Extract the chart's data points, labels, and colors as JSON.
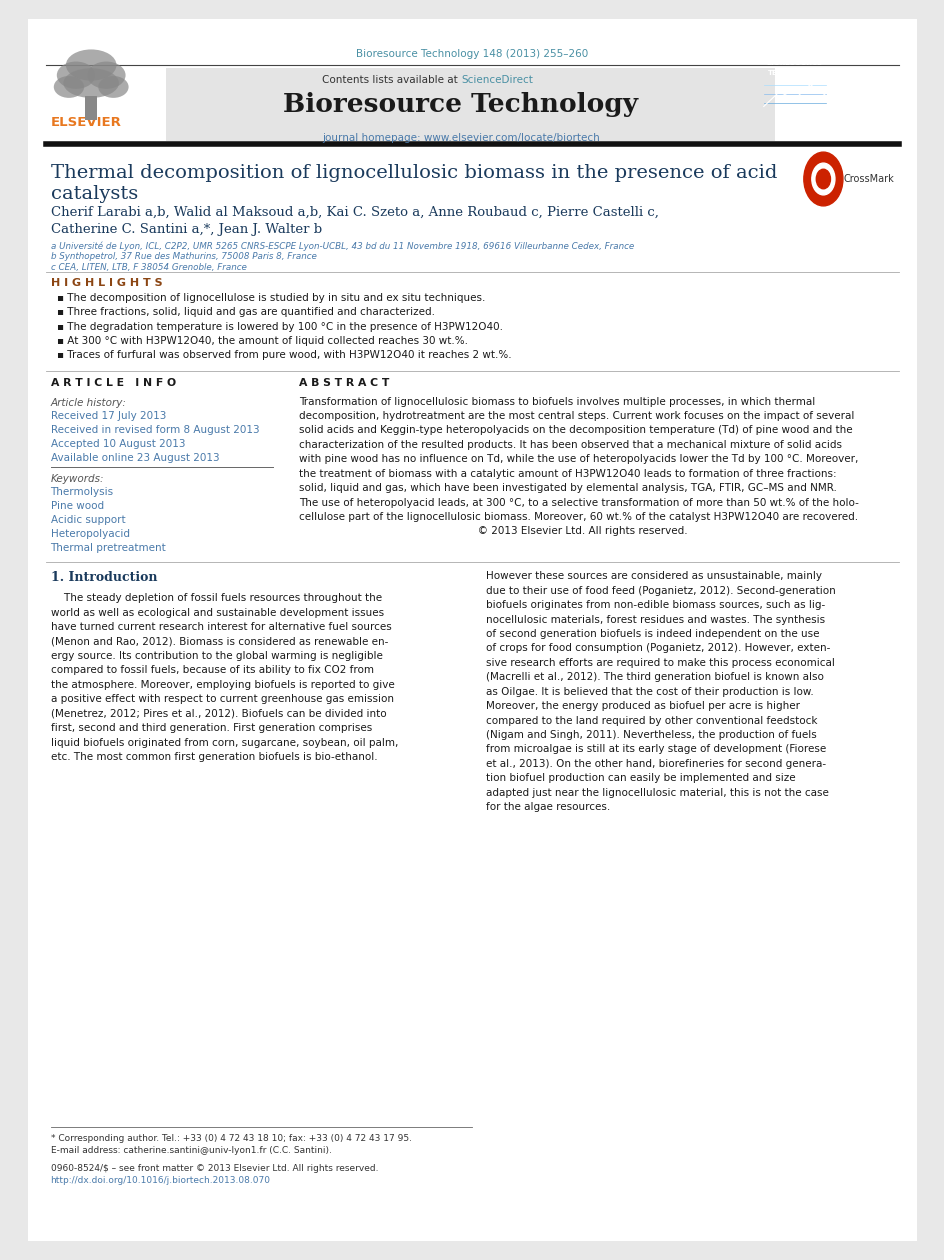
{
  "bg_color": "#e8e8e8",
  "page_bg": "#ffffff",
  "header_citation": "Bioresource Technology 148 (2013) 255–260",
  "header_citation_color": "#4a90a4",
  "journal_header_bg": "#e8e8e8",
  "journal_name": "Bioresource Technology",
  "journal_url": "journal homepage: www.elsevier.com/locate/biortech",
  "journal_url_color": "#4a7aaa",
  "contents_text": "Contents lists available at ",
  "sciencedirect_text": "ScienceDirect",
  "sciencedirect_color": "#4a90a4",
  "thick_rule_color": "#1a1a1a",
  "title_line1": "Thermal decomposition of lignocellulosic biomass in the presence of acid",
  "title_line2": "catalysts",
  "title_color": "#1a3a5c",
  "authors": "Cherif Larabi a,b, Walid al Maksoud a,b, Kai C. Szeto a, Anne Roubaud c, Pierre Castelli c,",
  "authors2": "Catherine C. Santini a,*, Jean J. Walter b",
  "authors_color": "#1a3a5c",
  "affil1": "a Université de Lyon, ICL, C2P2, UMR 5265 CNRS-ESCPE Lyon-UCBL, 43 bd du 11 Novembre 1918, 69616 Villeurbanne Cedex, France",
  "affil2": "b Synthopetrol, 37 Rue des Mathurins, 75008 Paris 8, France",
  "affil3": "c CEA, LITEN, LTB, F 38054 Grenoble, France",
  "affil_color": "#4a7aaa",
  "highlights_title": "H I G H L I G H T S",
  "highlights_color": "#8B4513",
  "highlight1": "The decomposition of lignocellulose is studied by in situ and ex situ techniques.",
  "highlight2": "Three fractions, solid, liquid and gas are quantified and characterized.",
  "highlight3": "The degradation temperature is lowered by 100 °C in the presence of H3PW12O40.",
  "highlight4": "At 300 °C with H3PW12O40, the amount of liquid collected reaches 30 wt.%.",
  "highlight5": "Traces of furfural was observed from pure wood, with H3PW12O40 it reaches 2 wt.%.",
  "article_info_title": "A R T I C L E   I N F O",
  "abstract_title": "A B S T R A C T",
  "section_title_color": "#1a1a1a",
  "article_history_label": "Article history:",
  "received1": "Received 17 July 2013",
  "received2": "Received in revised form 8 August 2013",
  "accepted": "Accepted 10 August 2013",
  "available": "Available online 23 August 2013",
  "article_info_color": "#4a7aaa",
  "keywords_label": "Keywords:",
  "keyword1": "Thermolysis",
  "keyword2": "Pine wood",
  "keyword3": "Acidic support",
  "keyword4": "Heteropolyacid",
  "keyword5": "Thermal pretreatment",
  "abstract_color": "#1a1a1a",
  "intro_title": "1. Introduction",
  "intro_color": "#1a3a5c",
  "link_color": "#8B4513",
  "footnote1": "* Corresponding author. Tel.: +33 (0) 4 72 43 18 10; fax: +33 (0) 4 72 43 17 95.",
  "footnote2": "E-mail address: catherine.santini@univ-lyon1.fr (C.C. Santini).",
  "footer1": "0960-8524/$ – see front matter © 2013 Elsevier Ltd. All rights reserved.",
  "footer2": "http://dx.doi.org/10.1016/j.biortech.2013.08.070",
  "footer_color": "#4a7aaa",
  "abstract_lines": [
    "Transformation of lignocellulosic biomass to biofuels involves multiple processes, in which thermal",
    "decomposition, hydrotreatment are the most central steps. Current work focuses on the impact of several",
    "solid acids and Keggin-type heteropolyacids on the decomposition temperature (Td) of pine wood and the",
    "characterization of the resulted products. It has been observed that a mechanical mixture of solid acids",
    "with pine wood has no influence on Td, while the use of heteropolyacids lower the Td by 100 °C. Moreover,",
    "the treatment of biomass with a catalytic amount of H3PW12O40 leads to formation of three fractions:",
    "solid, liquid and gas, which have been investigated by elemental analysis, TGA, FTIR, GC–MS and NMR.",
    "The use of heteropolyacid leads, at 300 °C, to a selective transformation of more than 50 wt.% of the holo-",
    "cellulose part of the lignocellulosic biomass. Moreover, 60 wt.% of the catalyst H3PW12O40 are recovered.",
    "                                                       © 2013 Elsevier Ltd. All rights reserved."
  ],
  "intro_left_lines": [
    "    The steady depletion of fossil fuels resources throughout the",
    "world as well as ecological and sustainable development issues",
    "have turned current research interest for alternative fuel sources",
    "(Menon and Rao, 2012). Biomass is considered as renewable en-",
    "ergy source. Its contribution to the global warming is negligible",
    "compared to fossil fuels, because of its ability to fix CO2 from",
    "the atmosphere. Moreover, employing biofuels is reported to give",
    "a positive effect with respect to current greenhouse gas emission",
    "(Menetrez, 2012; Pires et al., 2012). Biofuels can be divided into",
    "first, second and third generation. First generation comprises",
    "liquid biofuels originated from corn, sugarcane, soybean, oil palm,",
    "etc. The most common first generation biofuels is bio-ethanol."
  ],
  "intro_right_lines": [
    "However these sources are considered as unsustainable, mainly",
    "due to their use of food feed (Poganietz, 2012). Second-generation",
    "biofuels originates from non-edible biomass sources, such as lig-",
    "nocellulosic materials, forest residues and wastes. The synthesis",
    "of second generation biofuels is indeed independent on the use",
    "of crops for food consumption (Poganietz, 2012). However, exten-",
    "sive research efforts are required to make this process economical",
    "(Macrelli et al., 2012). The third generation biofuel is known also",
    "as Oilgae. It is believed that the cost of their production is low.",
    "Moreover, the energy produced as biofuel per acre is higher",
    "compared to the land required by other conventional feedstock",
    "(Nigam and Singh, 2011). Nevertheless, the production of fuels",
    "from microalgae is still at its early stage of development (Fiorese",
    "et al., 2013). On the other hand, biorefineries for second genera-",
    "tion biofuel production can easily be implemented and size",
    "adapted just near the lignocellulosic material, this is not the case",
    "for the algae resources."
  ]
}
